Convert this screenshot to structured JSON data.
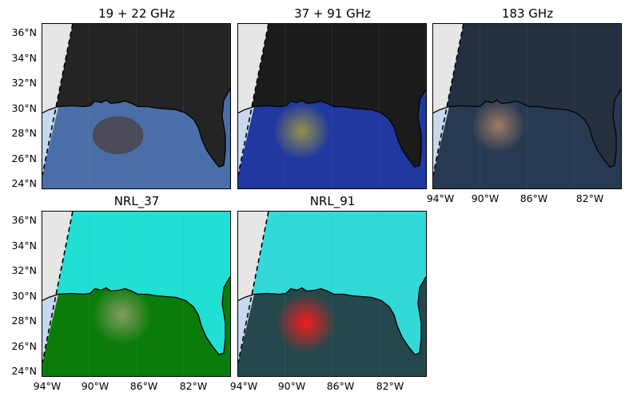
{
  "panels": [
    {
      "id": "p1",
      "title": "19 + 22 GHz"
    },
    {
      "id": "p2",
      "title": "37 + 91 GHz"
    },
    {
      "id": "p3",
      "title": "183 GHz"
    },
    {
      "id": "p4",
      "title": "NRL_37"
    },
    {
      "id": "p5",
      "title": "NRL_91"
    }
  ],
  "axes": {
    "lat_ticks": [
      "36°N",
      "34°N",
      "32°N",
      "30°N",
      "28°N",
      "26°N",
      "24°N"
    ],
    "lon_ticks": [
      "94°W",
      "90°W",
      "86°W",
      "82°W"
    ]
  },
  "colors": {
    "no_data": "#e6e6e6",
    "ocean_outside_swath": "#c8d8ee",
    "p1_land": "#242424",
    "p1_ocean": "#4a6fa8",
    "p2_land": "#1b1b1b",
    "p2_ocean": "#2038a0",
    "p2_storm": "#a8a23a",
    "p3_land": "#243040",
    "p3_ocean": "#283a52",
    "p3_storm": "#c8906a",
    "p4_land": "#1fe0d2",
    "p4_ocean": "#0a7c0a",
    "p4_storm": "#e8b8a8",
    "p5_land": "#33d8d8",
    "p5_ocean": "#24484c",
    "p5_storm": "#ff1a1a"
  }
}
